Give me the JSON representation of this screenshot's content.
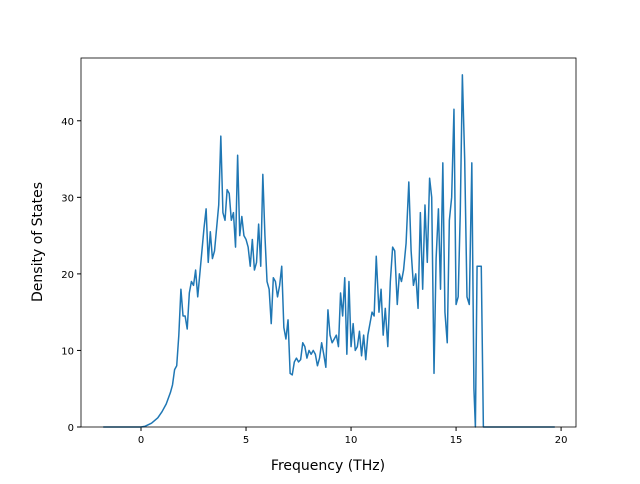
{
  "chart_data": {
    "type": "line",
    "xlabel": "Frequency (THz)",
    "ylabel": "Density of States",
    "x": [
      -1.8,
      0,
      0.2,
      0.5,
      0.8,
      1.0,
      1.2,
      1.4,
      1.5,
      1.6,
      1.7,
      1.8,
      1.9,
      2.0,
      2.1,
      2.2,
      2.3,
      2.4,
      2.5,
      2.6,
      2.7,
      2.8,
      2.9,
      3.0,
      3.1,
      3.2,
      3.3,
      3.4,
      3.5,
      3.6,
      3.7,
      3.8,
      3.9,
      4.0,
      4.1,
      4.2,
      4.3,
      4.4,
      4.5,
      4.6,
      4.7,
      4.8,
      4.9,
      5.0,
      5.1,
      5.2,
      5.3,
      5.4,
      5.5,
      5.6,
      5.7,
      5.8,
      5.9,
      6.0,
      6.1,
      6.2,
      6.3,
      6.4,
      6.5,
      6.6,
      6.7,
      6.8,
      6.9,
      7.0,
      7.1,
      7.2,
      7.3,
      7.4,
      7.5,
      7.6,
      7.7,
      7.8,
      7.9,
      8.0,
      8.1,
      8.2,
      8.3,
      8.4,
      8.5,
      8.6,
      8.7,
      8.8,
      8.9,
      9.0,
      9.1,
      9.2,
      9.3,
      9.4,
      9.5,
      9.6,
      9.7,
      9.8,
      9.9,
      10.0,
      10.1,
      10.2,
      10.3,
      10.4,
      10.5,
      10.6,
      10.7,
      10.8,
      10.9,
      11.0,
      11.1,
      11.2,
      11.33,
      11.43,
      11.53,
      11.63,
      11.75,
      11.87,
      11.98,
      12.08,
      12.2,
      12.3,
      12.4,
      12.5,
      12.62,
      12.75,
      12.86,
      12.97,
      13.08,
      13.19,
      13.3,
      13.41,
      13.52,
      13.63,
      13.74,
      13.84,
      13.95,
      14.05,
      14.16,
      14.26,
      14.37,
      14.47,
      14.58,
      14.68,
      14.79,
      14.9,
      15.0,
      15.1,
      15.2,
      15.3,
      15.41,
      15.52,
      15.63,
      15.75,
      15.85,
      15.92,
      16.0,
      16.2,
      16.3,
      19.7
    ],
    "series": [
      {
        "color": "#1f77b4",
        "values": [
          0,
          0,
          0.1,
          0.5,
          1.2,
          2,
          3,
          4.5,
          5.5,
          7.5,
          8,
          12,
          18,
          14.5,
          14.5,
          12.8,
          17.5,
          19,
          18.5,
          20.5,
          17,
          20,
          23,
          26,
          28.5,
          21.5,
          25.5,
          22,
          23,
          26,
          29,
          38,
          28,
          27,
          31,
          30.5,
          27,
          28,
          23.5,
          35.5,
          25,
          27.5,
          25,
          24.5,
          23.5,
          21,
          24.5,
          20.5,
          21.5,
          26.5,
          21,
          33,
          25,
          19,
          18,
          13.5,
          19.5,
          19,
          17,
          18.5,
          21,
          13,
          11.5,
          14,
          7,
          6.8,
          8.5,
          9,
          8.5,
          8.8,
          11,
          10.5,
          9,
          10,
          9.5,
          10,
          9.5,
          8,
          9,
          11,
          9.5,
          7.8,
          15.3,
          12,
          11,
          11.5,
          12,
          10.5,
          17.5,
          14.5,
          19.5,
          9.5,
          19,
          10.5,
          13.5,
          10,
          10.5,
          12.5,
          9.3,
          12,
          8.8,
          12,
          13.5,
          15,
          14.5,
          22.3,
          15,
          18,
          12,
          15.5,
          10.5,
          19,
          23.5,
          23,
          16,
          20,
          19,
          20.5,
          24,
          32,
          23,
          18.5,
          20,
          15.5,
          28,
          18,
          29,
          21.5,
          32.5,
          30,
          7,
          22,
          28.5,
          18,
          34.5,
          15,
          11,
          27,
          30,
          41.5,
          16,
          17,
          28,
          46,
          35,
          17,
          16,
          34.5,
          5,
          0,
          21,
          21,
          0,
          0
        ]
      }
    ],
    "xlim": [
      -2.857,
      20.71
    ],
    "ylim": [
      0,
      48.2
    ],
    "xticks": [
      0,
      5,
      10,
      15,
      20
    ],
    "yticks": [
      0,
      10,
      20,
      30,
      40
    ]
  }
}
